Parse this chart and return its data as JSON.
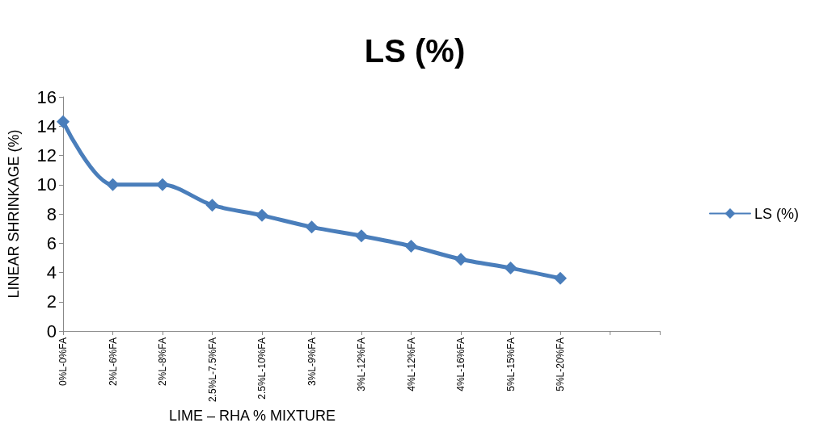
{
  "chart_data": {
    "type": "line",
    "title": "LS (%)",
    "xlabel": "LIME – RHA % MIXTURE",
    "ylabel": "LINEAR SHRINKAGE (%)",
    "categories": [
      "0%L-0%FA",
      "2%L-6%FA",
      "2%L-8%FA",
      "2.5%L-7.5%FA",
      "2.5%L-10%FA",
      "3%L-9%FA",
      "3%L-12%FA",
      "4%L-12%FA",
      "4%L-16%FA",
      "5%L-15%FA",
      "5%L-20%FA",
      null,
      null
    ],
    "series": [
      {
        "name": "LS (%)",
        "color": "#4a7ebb",
        "values": [
          14.3,
          10.0,
          10.0,
          8.6,
          7.9,
          7.1,
          6.5,
          5.8,
          4.9,
          4.3,
          3.6,
          null,
          null
        ]
      }
    ],
    "ylim": [
      0,
      16
    ],
    "yticks": [
      0,
      2,
      4,
      6,
      8,
      10,
      12,
      14,
      16
    ],
    "grid": false,
    "legend": "right",
    "marker": "diamond",
    "line_style": "solid"
  }
}
